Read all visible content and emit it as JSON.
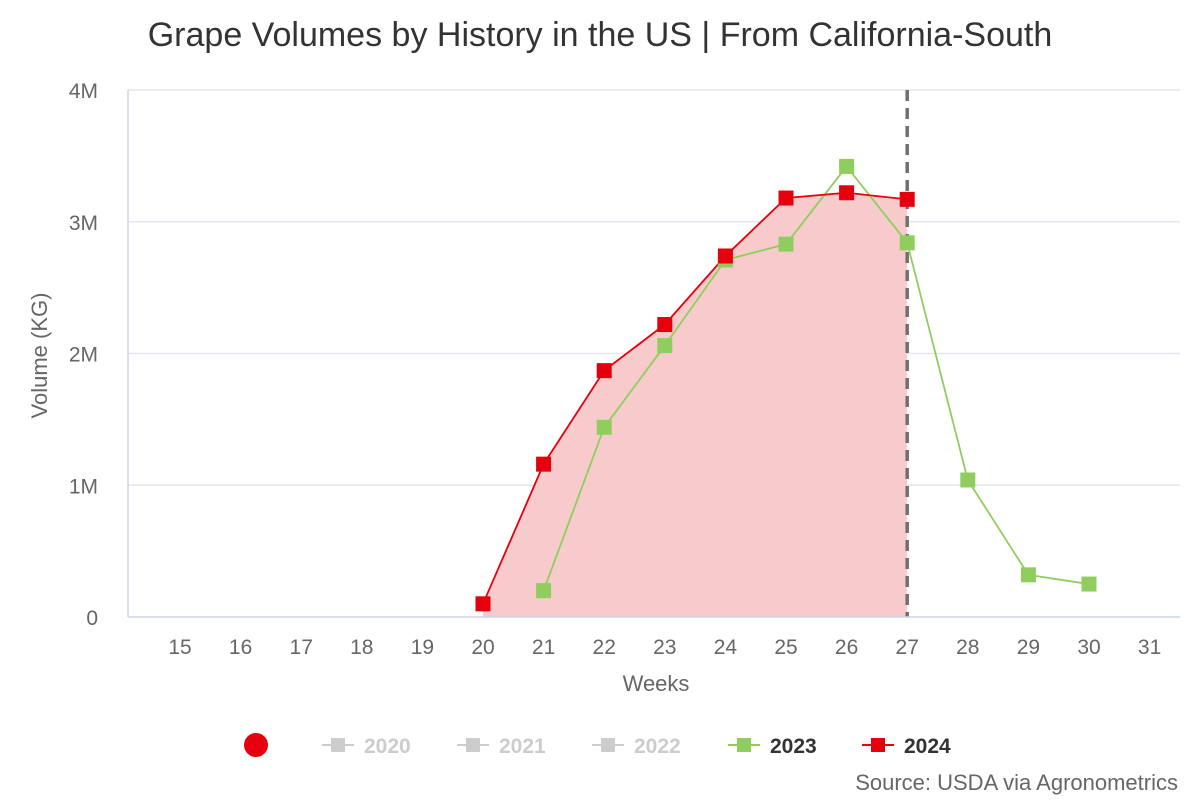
{
  "chart_data": {
    "type": "line",
    "title": "Grape Volumes by History in the US | From California-South",
    "xlabel": "Weeks",
    "ylabel": "Volume (KG)",
    "x": [
      15,
      16,
      17,
      18,
      19,
      20,
      21,
      22,
      23,
      24,
      25,
      26,
      27,
      28,
      29,
      30,
      31
    ],
    "ylim": [
      0,
      4000000
    ],
    "yticks": [
      0,
      1000000,
      2000000,
      3000000,
      4000000
    ],
    "ytick_labels": [
      "0",
      "1M",
      "2M",
      "3M",
      "4M"
    ],
    "grid": true,
    "current_week_marker": 27,
    "series": [
      {
        "name": "2020",
        "color": "#cccccc",
        "visible": false,
        "points": []
      },
      {
        "name": "2021",
        "color": "#cccccc",
        "visible": false,
        "points": []
      },
      {
        "name": "2022",
        "color": "#cccccc",
        "visible": false,
        "points": []
      },
      {
        "name": "2023",
        "color": "#8fce5e",
        "visible": true,
        "area": false,
        "points": [
          [
            21,
            200000
          ],
          [
            22,
            1440000
          ],
          [
            23,
            2060000
          ],
          [
            24,
            2710000
          ],
          [
            25,
            2830000
          ],
          [
            26,
            3420000
          ],
          [
            27,
            2840000
          ],
          [
            28,
            1040000
          ],
          [
            29,
            320000
          ],
          [
            30,
            250000
          ]
        ]
      },
      {
        "name": "2024",
        "color": "#e6000e",
        "visible": true,
        "area": true,
        "area_color": "#f7cbcb",
        "points": [
          [
            20,
            100000
          ],
          [
            21,
            1160000
          ],
          [
            22,
            1870000
          ],
          [
            23,
            2220000
          ],
          [
            24,
            2740000
          ],
          [
            25,
            3180000
          ],
          [
            26,
            3220000
          ],
          [
            27,
            3170000
          ]
        ]
      }
    ],
    "legend_placement": "bottom"
  },
  "legend": {
    "marker_color": "#e6000e"
  },
  "source": "Source: USDA via Agronometrics"
}
